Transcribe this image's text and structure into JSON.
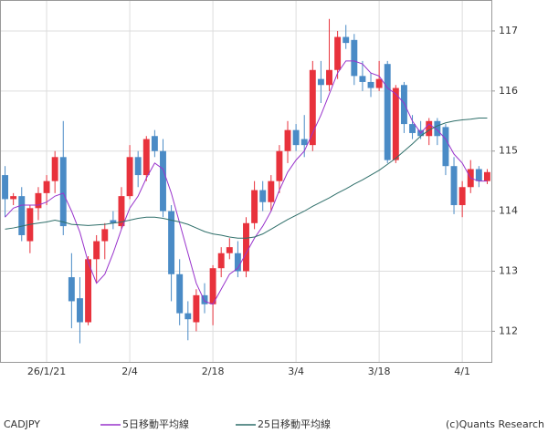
{
  "chart_data": {
    "type": "candlestick",
    "symbol": "CADJPY",
    "credit": "(c)Quants Research",
    "categories": [
      null,
      null,
      null,
      null,
      null,
      "26/1/21",
      null,
      null,
      null,
      null,
      null,
      null,
      null,
      null,
      null,
      "2/4",
      null,
      null,
      null,
      null,
      null,
      null,
      null,
      null,
      null,
      "2/18",
      null,
      null,
      null,
      null,
      null,
      null,
      null,
      null,
      null,
      "3/4",
      null,
      null,
      null,
      null,
      null,
      null,
      null,
      null,
      null,
      "3/18",
      null,
      null,
      null,
      null,
      null,
      null,
      null,
      null,
      null,
      "4/1",
      null,
      null,
      null
    ],
    "open": [
      114.6,
      114.2,
      114.25,
      113.5,
      114.05,
      114.3,
      114.5,
      114.9,
      112.9,
      112.55,
      112.15,
      113.2,
      113.5,
      113.85,
      113.75,
      114.25,
      114.9,
      114.6,
      115.25,
      115.0,
      114.0,
      112.95,
      112.3,
      112.15,
      112.6,
      112.45,
      113.05,
      113.3,
      113.3,
      113.0,
      113.8,
      114.35,
      114.15,
      114.5,
      115.0,
      115.35,
      115.2,
      115.1,
      116.2,
      116.1,
      116.35,
      116.9,
      116.85,
      116.25,
      116.15,
      116.05,
      116.45,
      114.85,
      116.1,
      115.45,
      115.35,
      115.25,
      115.5,
      115.4,
      114.75,
      114.1,
      114.4,
      114.7,
      114.5
    ],
    "high": [
      114.75,
      114.3,
      114.4,
      114.1,
      114.4,
      114.6,
      115.0,
      115.5,
      113.3,
      112.9,
      113.25,
      113.6,
      113.8,
      114.0,
      114.4,
      115.1,
      115.0,
      115.25,
      115.35,
      115.2,
      114.1,
      113.2,
      112.5,
      112.7,
      112.8,
      113.1,
      113.4,
      113.55,
      113.5,
      113.9,
      114.5,
      114.5,
      114.6,
      115.1,
      115.5,
      115.45,
      115.6,
      116.5,
      116.5,
      117.2,
      117.0,
      117.1,
      116.95,
      116.5,
      116.3,
      116.5,
      116.5,
      116.1,
      116.15,
      115.6,
      115.5,
      115.55,
      115.55,
      115.45,
      114.9,
      114.5,
      114.85,
      114.75,
      114.7
    ],
    "low": [
      113.9,
      114.1,
      113.5,
      113.3,
      113.85,
      114.1,
      114.3,
      113.6,
      112.05,
      111.8,
      112.1,
      112.8,
      113.2,
      113.7,
      113.7,
      114.2,
      114.4,
      114.5,
      114.9,
      113.9,
      112.5,
      112.1,
      111.85,
      112.0,
      112.3,
      112.1,
      112.9,
      113.2,
      112.9,
      112.9,
      113.7,
      114.0,
      114.0,
      114.3,
      114.8,
      115.0,
      114.9,
      115.0,
      115.8,
      116.0,
      116.2,
      116.7,
      116.1,
      116.0,
      115.9,
      116.0,
      114.8,
      114.8,
      115.3,
      115.2,
      115.2,
      115.1,
      115.1,
      114.6,
      113.95,
      113.9,
      114.3,
      114.4,
      114.45
    ],
    "close": [
      114.2,
      114.25,
      113.6,
      114.05,
      114.3,
      114.5,
      114.9,
      113.75,
      112.5,
      112.15,
      113.2,
      113.5,
      113.7,
      113.8,
      114.25,
      114.9,
      114.6,
      115.2,
      115.0,
      114.0,
      112.95,
      112.3,
      112.2,
      112.6,
      112.45,
      113.05,
      113.3,
      113.4,
      113.0,
      113.8,
      114.35,
      114.15,
      114.5,
      115.0,
      115.35,
      115.1,
      115.1,
      116.35,
      116.1,
      116.35,
      116.9,
      116.8,
      116.25,
      116.15,
      116.05,
      116.2,
      114.85,
      116.05,
      115.45,
      115.3,
      115.25,
      115.5,
      115.25,
      114.75,
      114.1,
      114.4,
      114.7,
      114.5,
      114.65
    ],
    "up_color": "#e8323c",
    "down_color": "#4a8bc6",
    "lines": [
      {
        "name": "5日移動平均線",
        "color": "#9933cc",
        "values": [
          113.9,
          114.05,
          114.1,
          114.1,
          114.1,
          114.15,
          114.25,
          114.3,
          114.0,
          113.65,
          113.15,
          112.8,
          112.95,
          113.3,
          113.7,
          114.05,
          114.25,
          114.55,
          114.8,
          114.7,
          114.3,
          113.8,
          113.3,
          112.8,
          112.5,
          112.45,
          112.7,
          112.95,
          113.05,
          113.3,
          113.55,
          113.75,
          114.0,
          114.35,
          114.65,
          114.85,
          115.0,
          115.3,
          115.6,
          115.95,
          116.3,
          116.5,
          116.5,
          116.45,
          116.3,
          116.25,
          116.05,
          115.95,
          115.8,
          115.5,
          115.3,
          115.45,
          115.35,
          115.2,
          114.95,
          114.8,
          114.55,
          114.5,
          114.5
        ]
      },
      {
        "name": "25日移動平均線",
        "color": "#2f6f6a",
        "values": [
          113.7,
          113.72,
          113.75,
          113.78,
          113.8,
          113.82,
          113.85,
          113.82,
          113.78,
          113.77,
          113.76,
          113.77,
          113.78,
          113.8,
          113.82,
          113.85,
          113.88,
          113.9,
          113.9,
          113.88,
          113.85,
          113.82,
          113.78,
          113.72,
          113.66,
          113.62,
          113.6,
          113.57,
          113.55,
          113.55,
          113.57,
          113.62,
          113.7,
          113.78,
          113.86,
          113.93,
          114.0,
          114.08,
          114.15,
          114.22,
          114.3,
          114.37,
          114.45,
          114.52,
          114.6,
          114.68,
          114.78,
          114.88,
          115.0,
          115.12,
          115.25,
          115.35,
          115.42,
          115.47,
          115.5,
          115.52,
          115.53,
          115.55,
          115.55
        ]
      }
    ],
    "ylim": [
      111.49,
      117.5
    ],
    "yticks": [
      112,
      113,
      114,
      115,
      116,
      117
    ],
    "grid": true
  }
}
